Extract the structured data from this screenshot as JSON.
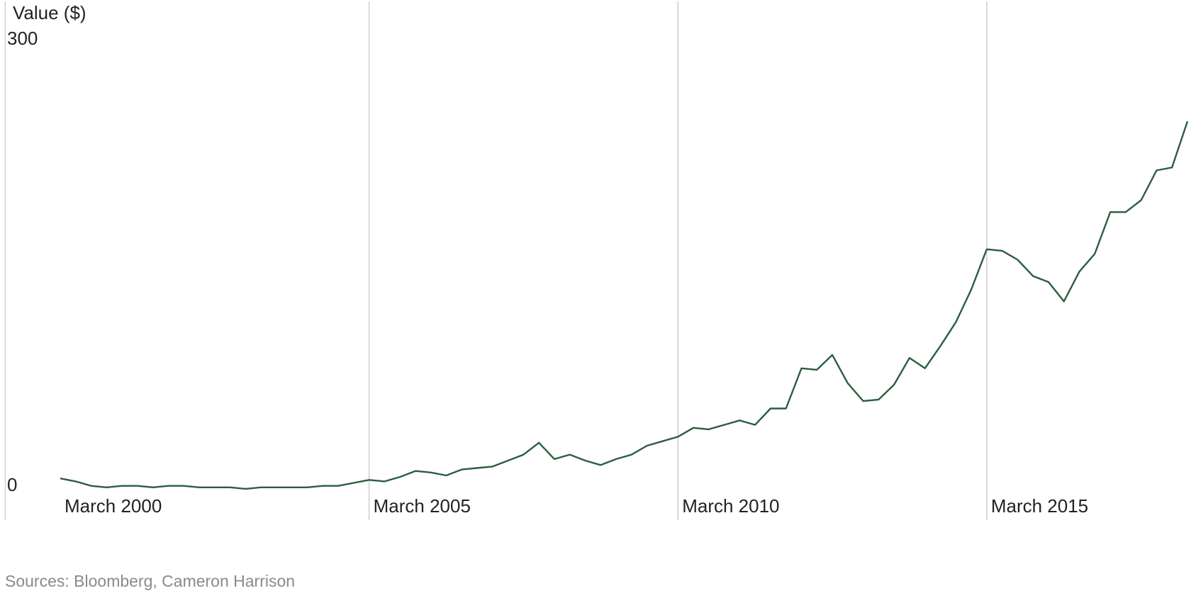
{
  "chart_data": {
    "type": "line",
    "y_label": "Value ($)",
    "source": "Sources: Bloomberg, Cameron Harrison",
    "x": [
      "2000-03",
      "2000-06",
      "2000-09",
      "2000-12",
      "2001-03",
      "2001-06",
      "2001-09",
      "2001-12",
      "2002-03",
      "2002-06",
      "2002-09",
      "2002-12",
      "2003-03",
      "2003-06",
      "2003-09",
      "2003-12",
      "2004-03",
      "2004-06",
      "2004-09",
      "2004-12",
      "2005-03",
      "2005-06",
      "2005-09",
      "2005-12",
      "2006-03",
      "2006-06",
      "2006-09",
      "2006-12",
      "2007-03",
      "2007-06",
      "2007-09",
      "2007-12",
      "2008-03",
      "2008-06",
      "2008-09",
      "2008-12",
      "2009-03",
      "2009-06",
      "2009-09",
      "2009-12",
      "2010-03",
      "2010-06",
      "2010-09",
      "2010-12",
      "2011-03",
      "2011-06",
      "2011-09",
      "2011-12",
      "2012-03",
      "2012-06",
      "2012-09",
      "2012-12",
      "2013-03",
      "2013-06",
      "2013-09",
      "2013-12",
      "2014-03",
      "2014-06",
      "2014-09",
      "2014-12",
      "2015-03",
      "2015-06",
      "2015-09",
      "2015-12",
      "2016-03",
      "2016-06",
      "2016-09",
      "2016-12",
      "2017-03",
      "2017-06",
      "2017-09",
      "2017-12",
      "2018-03",
      "2018-06"
    ],
    "series": [
      {
        "color": "#2a5e3e",
        "values": [
          8,
          6,
          3,
          2,
          3,
          3,
          2,
          3,
          3,
          2,
          2,
          2,
          1,
          2,
          2,
          2,
          2,
          3,
          3,
          5,
          7,
          6,
          9,
          13,
          12,
          10,
          14,
          15,
          16,
          20,
          24,
          32,
          21,
          24,
          20,
          17,
          21,
          24,
          30,
          33,
          36,
          42,
          41,
          44,
          47,
          44,
          55,
          55,
          82,
          81,
          91,
          72,
          60,
          61,
          71,
          89,
          82,
          97,
          113,
          135,
          162,
          161,
          155,
          144,
          140,
          127,
          147,
          159,
          187,
          187,
          195,
          215,
          217,
          248
        ]
      }
    ],
    "xticks": [
      {
        "value": "2000-03",
        "label": "March 2000"
      },
      {
        "value": "2005-03",
        "label": "March 2005"
      },
      {
        "value": "2010-03",
        "label": "March 2010"
      },
      {
        "value": "2015-03",
        "label": "March 2015"
      }
    ],
    "ylim": [
      0,
      300
    ],
    "yticks": [
      0,
      300
    ],
    "grid": true
  }
}
